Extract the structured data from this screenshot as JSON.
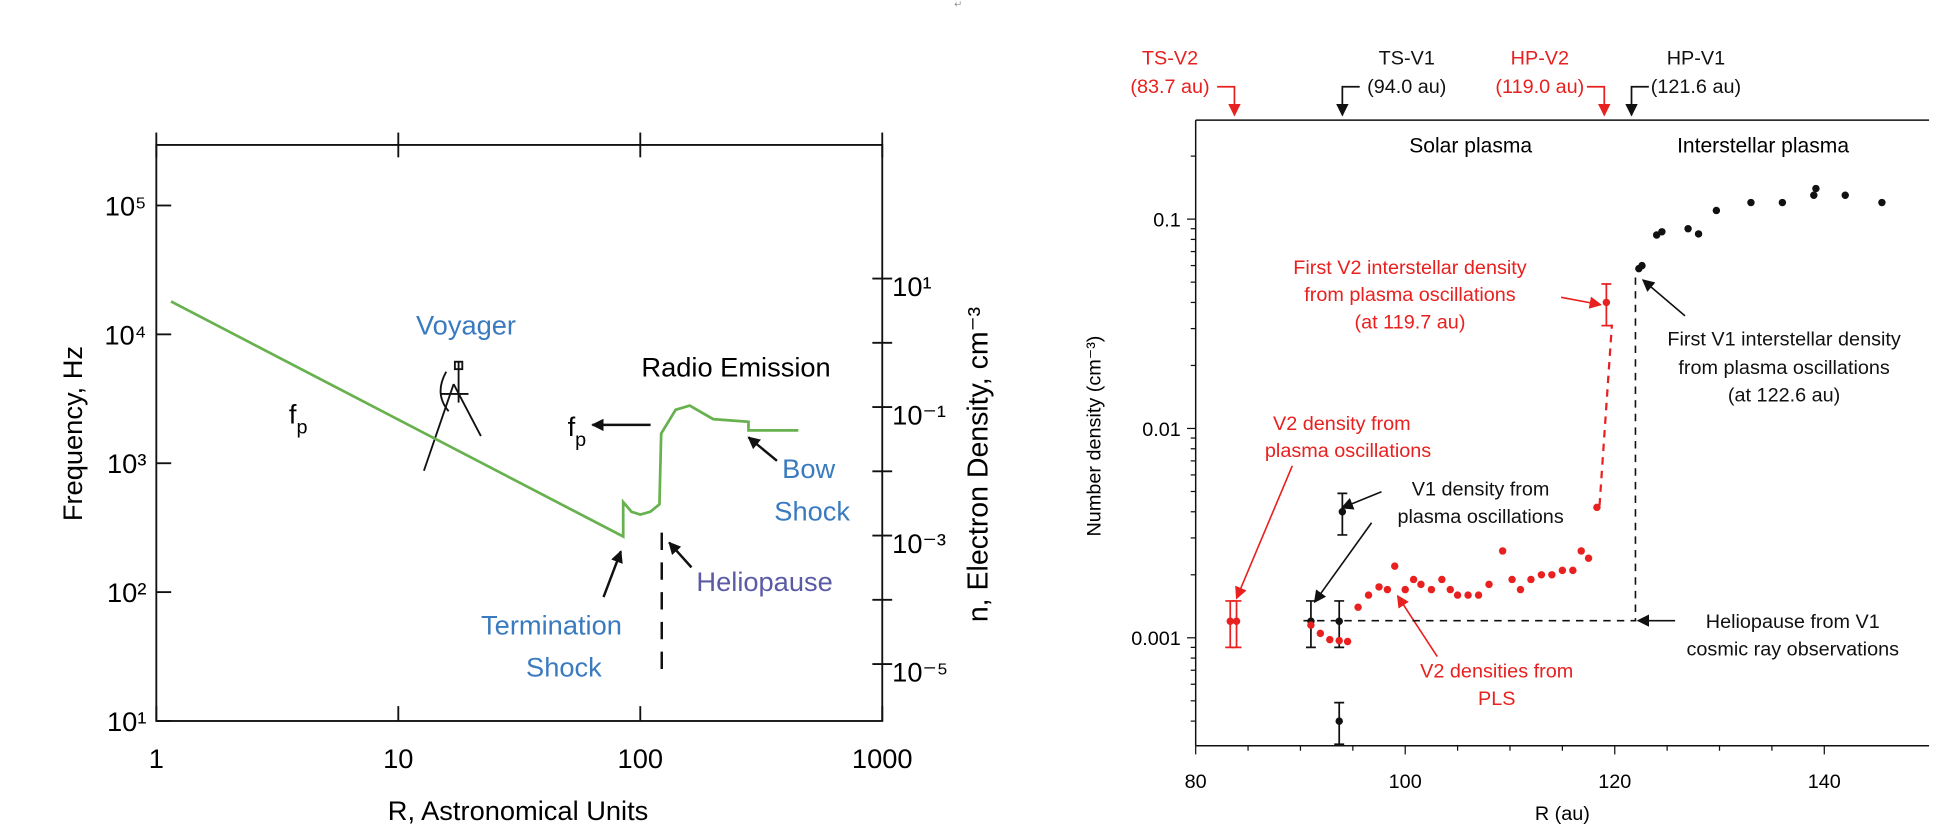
{
  "stray_mark": "↵",
  "chart_data": [
    {
      "type": "line",
      "x_scale": "log",
      "y_scale": "log",
      "y2_scale": "log",
      "x_label": "R,  Astronomical Units",
      "y_label": "Frequency,  Hz",
      "y2_label": "n,  Electron Density,  cm⁻³",
      "xlim": [
        1,
        1000
      ],
      "ylim": [
        10,
        295000
      ],
      "y2lim": [
        1.3e-06,
        1200
      ],
      "xticks": [
        1,
        10,
        100,
        1000
      ],
      "yticks": [
        {
          "value": 10,
          "label": "10¹"
        },
        {
          "value": 100,
          "label": "10²"
        },
        {
          "value": 1000,
          "label": "10³"
        },
        {
          "value": 10000,
          "label": "10⁴"
        },
        {
          "value": 100000,
          "label": "10⁵"
        }
      ],
      "y2ticks": [
        {
          "value": 1e-05,
          "label": "10⁻⁵"
        },
        {
          "value": 0.001,
          "label": "10⁻³"
        },
        {
          "value": 0.1,
          "label": "10⁻¹"
        },
        {
          "value": 10,
          "label": "10¹"
        }
      ],
      "x": [
        1.15,
        85,
        85,
        92,
        100,
        110,
        120,
        122,
        140,
        160,
        200,
        280,
        280,
        450
      ],
      "series": [
        {
          "color": "#67b14f",
          "values": [
            18000,
            270,
            500,
            420,
            400,
            420,
            480,
            1700,
            2600,
            2800,
            2200,
            2100,
            1800,
            1800
          ]
        }
      ],
      "annotations": {
        "voyager": "Voyager",
        "fp_labels": [
          {
            "main": "f",
            "sub": "p"
          },
          {
            "main": "f",
            "sub": "p"
          }
        ],
        "radio": "Radio Emission",
        "termination": [
          "Termination",
          "Shock"
        ],
        "heliopause": "Heliopause",
        "bow": [
          "Bow",
          "Shock"
        ]
      }
    },
    {
      "type": "scatter",
      "y_scale": "log",
      "x_label": "R (au)",
      "y_label": "Number density (cm⁻³)",
      "xlim": [
        80,
        150
      ],
      "ylim": [
        0.000305,
        0.297
      ],
      "xticks": [
        80,
        100,
        120,
        140
      ],
      "yticks": [
        0.001,
        0.01,
        0.1
      ],
      "series": [
        {
          "color": "#e8201f",
          "x": [
            83.3,
            83.9
          ],
          "values": [
            0.0012,
            0.0012
          ],
          "errors": [
            0.0003,
            0.0003
          ]
        },
        {
          "color": "#111111",
          "x": [
            94,
            91,
            93.7,
            93.7
          ],
          "values": [
            0.004,
            0.0012,
            0.0012,
            0.0004
          ],
          "errors": [
            0.0009,
            0.0003,
            0.0003,
            9e-05
          ]
        },
        {
          "color": "#e8201f",
          "x": [
            91.0,
            91.9,
            92.8,
            93.7,
            94.5,
            95.5,
            96.5,
            97.5,
            98.3,
            99.0,
            100,
            100.8,
            101.5,
            102.5,
            103.5,
            104.3,
            105,
            106,
            107,
            108,
            109.3,
            110.2,
            111,
            112,
            113,
            114,
            115,
            116,
            116.8,
            117.5,
            118.3
          ],
          "values": [
            0.00115,
            0.00105,
            0.00098,
            0.00097,
            0.00096,
            0.0014,
            0.0016,
            0.00175,
            0.0017,
            0.0022,
            0.0017,
            0.0019,
            0.0018,
            0.0017,
            0.0019,
            0.0017,
            0.0016,
            0.0016,
            0.0016,
            0.0018,
            0.0026,
            0.0019,
            0.0017,
            0.0019,
            0.002,
            0.002,
            0.0021,
            0.0021,
            0.0026,
            0.0024,
            0.0042
          ]
        },
        {
          "color": "#e8201f",
          "x": [
            119.2
          ],
          "values": [
            0.04
          ],
          "errors": [
            0.009
          ]
        },
        {
          "color": "#111111",
          "x": [
            122.3,
            122.6,
            124,
            124.5,
            127,
            128,
            129.7,
            133,
            136,
            139,
            139.2,
            142,
            145.5
          ],
          "values": [
            0.058,
            0.06,
            0.084,
            0.087,
            0.09,
            0.085,
            0.11,
            0.12,
            0.12,
            0.13,
            0.14,
            0.13,
            0.12
          ]
        }
      ],
      "markers": [
        {
          "label": "TS-V2",
          "sublabel": "(83.7 au)",
          "x": 83.7,
          "color": "#e8201f"
        },
        {
          "label": "TS-V1",
          "sublabel": "(94.0 au)",
          "x": 94.0,
          "color": "#111111"
        },
        {
          "label": "HP-V2",
          "sublabel": "(119.0 au)",
          "x": 119.0,
          "color": "#e8201f"
        },
        {
          "label": "HP-V1",
          "sublabel": "(121.6 au)",
          "x": 121.6,
          "color": "#111111"
        }
      ],
      "annotations": {
        "solar": "Solar plasma",
        "interstellar": "Interstellar plasma",
        "first_v2": [
          "First V2 interstellar density",
          "from plasma oscillations",
          "(at 119.7 au)"
        ],
        "first_v1": [
          "First V1 interstellar density",
          "from plasma oscillations",
          "(at 122.6 au)"
        ],
        "v2_po": [
          "V2 density from",
          "plasma oscillations"
        ],
        "v1_po": [
          "V1 density from",
          "plasma oscillations"
        ],
        "v2_pls": [
          "V2 densities from",
          "PLS"
        ],
        "heliopause": [
          "Heliopause from V1",
          "cosmic ray observations"
        ]
      }
    }
  ]
}
